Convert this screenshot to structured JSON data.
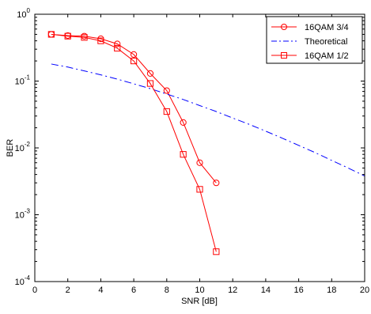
{
  "chart_data": {
    "type": "line",
    "xlabel": "SNR [dB]",
    "ylabel": "BER",
    "xlim": [
      0,
      20
    ],
    "ylim": [
      0.0001,
      1
    ],
    "yscale": "log",
    "grid": false,
    "legend_position": "top-right",
    "x_ticks": [
      0,
      2,
      4,
      6,
      8,
      10,
      12,
      14,
      16,
      18,
      20
    ],
    "x_tick_labels": [
      "0",
      "2",
      "4",
      "6",
      "8",
      "10",
      "12",
      "14",
      "16",
      "18",
      "20"
    ],
    "y_ticks": [
      {
        "value": 1,
        "base": "10",
        "exp": "0"
      },
      {
        "value": 0.1,
        "base": "10",
        "exp": "-1"
      },
      {
        "value": 0.01,
        "base": "10",
        "exp": "-2"
      },
      {
        "value": 0.001,
        "base": "10",
        "exp": "-3"
      },
      {
        "value": 0.0001,
        "base": "10",
        "exp": "-4"
      }
    ],
    "series": [
      {
        "name": "16QAM 3/4",
        "color": "#ff0000",
        "line": "solid",
        "marker": "circle",
        "x": [
          1,
          2,
          3,
          4,
          5,
          6,
          7,
          8,
          9,
          10,
          11
        ],
        "y": [
          0.5,
          0.48,
          0.47,
          0.43,
          0.36,
          0.25,
          0.13,
          0.072,
          0.024,
          0.006,
          0.003
        ]
      },
      {
        "name": "Theoretical",
        "color": "#0000ff",
        "line": "dashdot",
        "marker": "none",
        "x": [
          1,
          2,
          3,
          4,
          5,
          6,
          7,
          8,
          9,
          10,
          11,
          12,
          13,
          14,
          15,
          16,
          17,
          18,
          19,
          20
        ],
        "y": [
          0.18,
          0.162,
          0.142,
          0.124,
          0.107,
          0.091,
          0.077,
          0.064,
          0.053,
          0.043,
          0.035,
          0.028,
          0.0225,
          0.0178,
          0.014,
          0.0109,
          0.0085,
          0.0065,
          0.005,
          0.0038
        ]
      },
      {
        "name": "16QAM 1/2",
        "color": "#ff0000",
        "line": "solid",
        "marker": "square",
        "x": [
          1,
          2,
          3,
          4,
          5,
          6,
          7,
          8,
          9,
          10,
          11
        ],
        "y": [
          0.5,
          0.47,
          0.45,
          0.4,
          0.31,
          0.2,
          0.092,
          0.035,
          0.008,
          0.0024,
          0.00028
        ]
      }
    ]
  }
}
